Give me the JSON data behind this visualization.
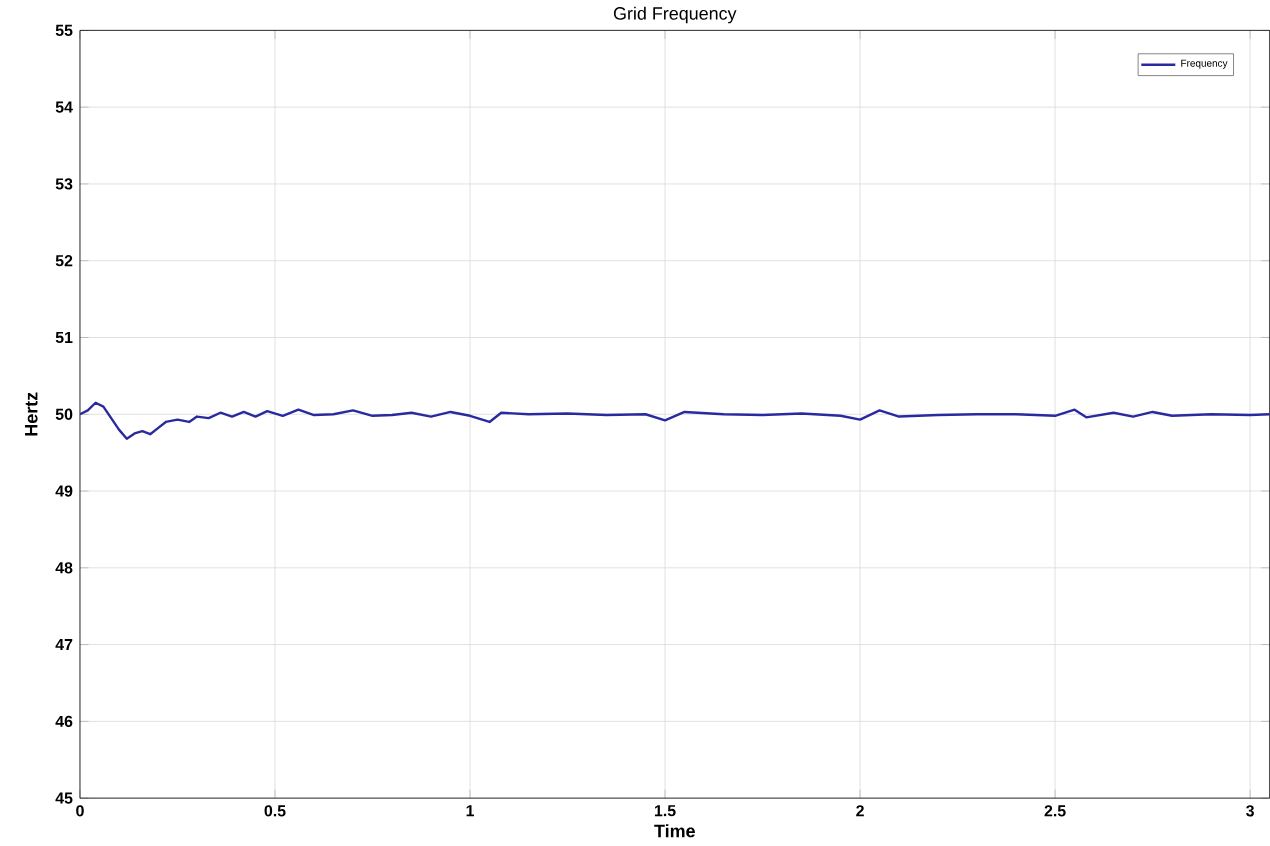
{
  "chart_data": {
    "type": "line",
    "title": "Grid Frequency",
    "xlabel": "Time",
    "ylabel": "Hertz",
    "xlim": [
      0,
      3.05
    ],
    "xticks": [
      0,
      0.5,
      1,
      1.5,
      2,
      2.5,
      3
    ],
    "ylim": [
      45,
      55
    ],
    "yticks": [
      45,
      46,
      47,
      48,
      49,
      50,
      51,
      52,
      53,
      54,
      55
    ],
    "grid": true,
    "legend": "top right",
    "line_style": "solid",
    "marker": "none",
    "series": [
      {
        "name": "Frequency",
        "color": "#2a2aa0",
        "x": [
          0,
          0.02,
          0.04,
          0.06,
          0.08,
          0.1,
          0.12,
          0.14,
          0.16,
          0.18,
          0.2,
          0.22,
          0.25,
          0.28,
          0.3,
          0.33,
          0.36,
          0.39,
          0.42,
          0.45,
          0.48,
          0.52,
          0.56,
          0.6,
          0.65,
          0.7,
          0.75,
          0.8,
          0.85,
          0.9,
          0.95,
          1.0,
          1.05,
          1.08,
          1.15,
          1.25,
          1.35,
          1.45,
          1.5,
          1.55,
          1.65,
          1.75,
          1.85,
          1.95,
          2.0,
          2.05,
          2.1,
          2.2,
          2.3,
          2.4,
          2.5,
          2.55,
          2.58,
          2.65,
          2.7,
          2.75,
          2.8,
          2.9,
          3.0,
          3.05
        ],
        "values": [
          50.0,
          50.05,
          50.15,
          50.1,
          49.95,
          49.8,
          49.68,
          49.75,
          49.78,
          49.74,
          49.82,
          49.9,
          49.93,
          49.9,
          49.97,
          49.95,
          50.02,
          49.97,
          50.03,
          49.97,
          50.04,
          49.98,
          50.06,
          49.99,
          50.0,
          50.05,
          49.98,
          49.99,
          50.02,
          49.97,
          50.03,
          49.98,
          49.9,
          50.02,
          50.0,
          50.01,
          49.99,
          50.0,
          49.92,
          50.03,
          50.0,
          49.99,
          50.01,
          49.98,
          49.93,
          50.05,
          49.97,
          49.99,
          50.0,
          50.0,
          49.98,
          50.06,
          49.96,
          50.02,
          49.97,
          50.03,
          49.98,
          50.0,
          49.99,
          50.0
        ]
      }
    ]
  }
}
